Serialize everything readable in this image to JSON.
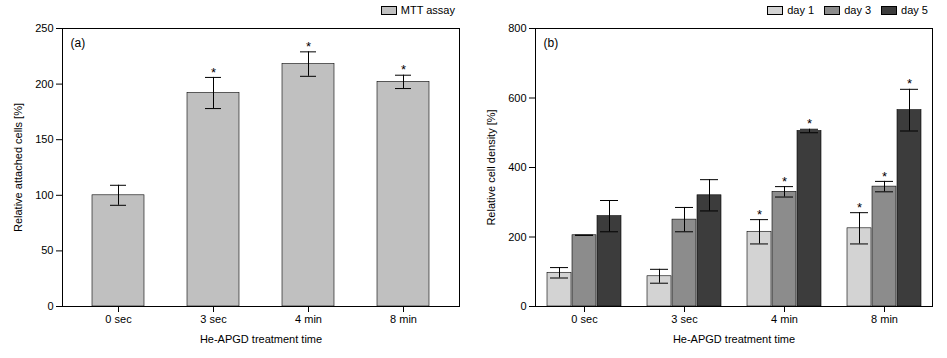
{
  "chart_data": [
    {
      "type": "bar",
      "title": "(a)",
      "x_label": "He-APGD treatment time",
      "y_label": "Relative attached cells [%]",
      "categories": [
        "0 sec",
        "3 sec",
        "4 min",
        "8 min"
      ],
      "series": [
        {
          "name": "MTT assay",
          "color": "#c0c0c0",
          "values": [
            100,
            192,
            218,
            202
          ],
          "errors": [
            9,
            14,
            11,
            6
          ]
        }
      ],
      "ylim": [
        0,
        250
      ],
      "yticks": [
        0,
        50,
        100,
        150,
        200,
        250
      ],
      "grid": false,
      "legend": "top-right",
      "annotations": [
        {
          "category": "3 sec",
          "series": "MTT assay",
          "text": "*"
        },
        {
          "category": "4 min",
          "series": "MTT assay",
          "text": "*"
        },
        {
          "category": "8 min",
          "series": "MTT assay",
          "text": "*"
        }
      ]
    },
    {
      "type": "bar",
      "title": "(b)",
      "x_label": "He-APGD treatment time",
      "y_label": "Relative cell density [%]",
      "categories": [
        "0 sec",
        "3 sec",
        "4 min",
        "8 min"
      ],
      "series": [
        {
          "name": "day 1",
          "color": "#d3d3d3",
          "values": [
            97,
            87,
            215,
            225
          ],
          "errors": [
            15,
            20,
            35,
            45
          ]
        },
        {
          "name": "day 3",
          "color": "#8c8c8c",
          "values": [
            205,
            250,
            330,
            345
          ],
          "errors": [
            0,
            35,
            15,
            15
          ]
        },
        {
          "name": "day 5",
          "color": "#3c3c3c",
          "values": [
            260,
            320,
            505,
            565
          ],
          "errors": [
            45,
            45,
            5,
            60
          ]
        }
      ],
      "ylim": [
        0,
        800
      ],
      "yticks": [
        0,
        200,
        400,
        600,
        800
      ],
      "grid": false,
      "legend": "top-right",
      "annotations": [
        {
          "category": "4 min",
          "series": "day 1",
          "text": "*"
        },
        {
          "category": "4 min",
          "series": "day 3",
          "text": "*"
        },
        {
          "category": "4 min",
          "series": "day 5",
          "text": "*"
        },
        {
          "category": "8 min",
          "series": "day 1",
          "text": "*"
        },
        {
          "category": "8 min",
          "series": "day 3",
          "text": "*"
        },
        {
          "category": "8 min",
          "series": "day 5",
          "text": "*"
        }
      ]
    }
  ]
}
